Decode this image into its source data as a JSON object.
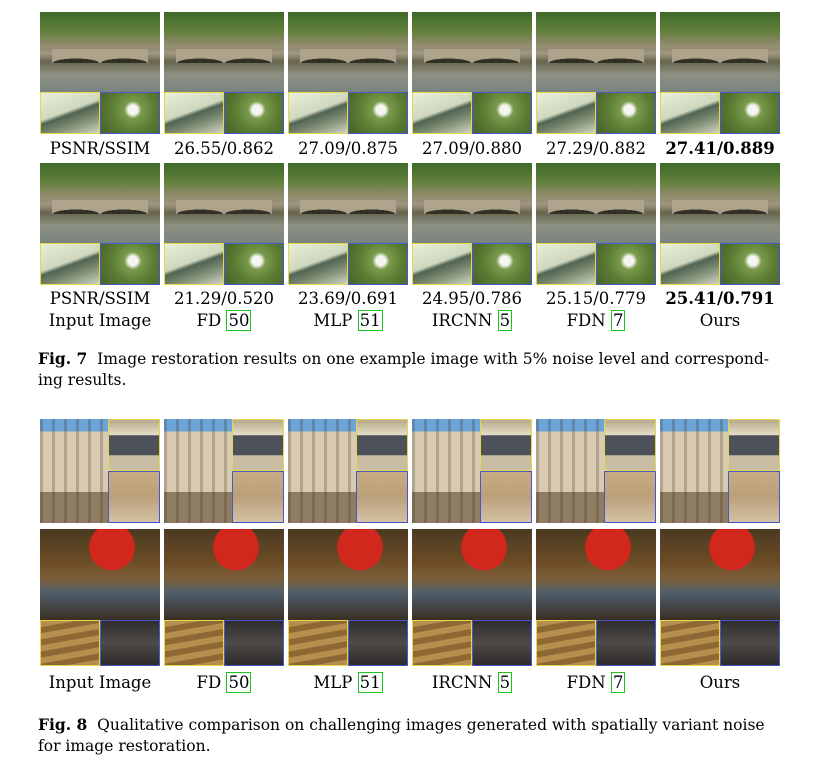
{
  "fig7": {
    "row1_metrics": [
      "PSNR/SSIM",
      "26.55/0.862",
      "27.09/0.875",
      "27.09/0.880",
      "27.29/0.882",
      "27.41/0.889"
    ],
    "row2_metrics": [
      "PSNR/SSIM",
      "21.29/0.520",
      "23.69/0.691",
      "24.95/0.786",
      "25.15/0.779",
      "25.41/0.791"
    ],
    "methods": [
      {
        "name": "Input Image",
        "ref": ""
      },
      {
        "name": "FD",
        "ref": "50"
      },
      {
        "name": "MLP",
        "ref": "51"
      },
      {
        "name": "IRCNN",
        "ref": "5"
      },
      {
        "name": "FDN",
        "ref": "7"
      },
      {
        "name": "Ours",
        "ref": ""
      }
    ],
    "caption_label": "Fig. 7",
    "caption_line1": "Image restoration results on one example image with 5% noise level and correspond-",
    "caption_line2": "ing results."
  },
  "fig8": {
    "methods": [
      {
        "name": "Input Image",
        "ref": ""
      },
      {
        "name": "FD",
        "ref": "50"
      },
      {
        "name": "MLP",
        "ref": "51"
      },
      {
        "name": "IRCNN",
        "ref": "5"
      },
      {
        "name": "FDN",
        "ref": "7"
      },
      {
        "name": "Ours",
        "ref": ""
      }
    ],
    "caption_label": "Fig. 8",
    "caption_line1": "Qualitative comparison on challenging images generated with spatially variant noise",
    "caption_line2": "for image restoration."
  }
}
